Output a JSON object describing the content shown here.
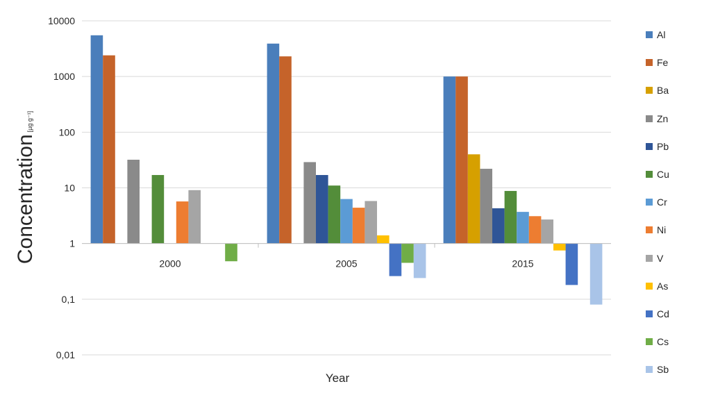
{
  "chart_data": {
    "type": "bar",
    "title": "",
    "xlabel": "Year",
    "ylabel": "Concentration",
    "ylabel_unit": "[µg g⁻¹]",
    "y_scale": "log",
    "ylim": [
      0.01,
      10000
    ],
    "y_ticks": [
      {
        "value": 0.01,
        "label": "0,01"
      },
      {
        "value": 0.1,
        "label": "0,1"
      },
      {
        "value": 1,
        "label": "1"
      },
      {
        "value": 10,
        "label": "10"
      },
      {
        "value": 100,
        "label": "100"
      },
      {
        "value": 1000,
        "label": "1000"
      },
      {
        "value": 10000,
        "label": "10000"
      }
    ],
    "bar_baseline": 1,
    "grid": true,
    "legend_position": "right",
    "categories": [
      "2000",
      "2005",
      "2015"
    ],
    "series": [
      {
        "name": "Al",
        "color": "#4a7ebb",
        "values": [
          5500,
          3900,
          1000
        ]
      },
      {
        "name": "Fe",
        "color": "#c5632a",
        "values": [
          2400,
          2300,
          1000
        ]
      },
      {
        "name": "Ba",
        "color": "#d6a000",
        "values": [
          null,
          null,
          40
        ]
      },
      {
        "name": "Zn",
        "color": "#8a8a8a",
        "values": [
          32,
          29,
          22
        ]
      },
      {
        "name": "Pb",
        "color": "#2f5597",
        "values": [
          null,
          17,
          4.3
        ]
      },
      {
        "name": "Cu",
        "color": "#538d3a",
        "values": [
          17,
          11,
          8.8
        ]
      },
      {
        "name": "Cr",
        "color": "#5b9bd5",
        "values": [
          null,
          6.3,
          3.7
        ]
      },
      {
        "name": "Ni",
        "color": "#ed7d31",
        "values": [
          5.7,
          4.4,
          3.1
        ]
      },
      {
        "name": "V",
        "color": "#a5a5a5",
        "values": [
          9.1,
          5.8,
          2.7
        ]
      },
      {
        "name": "As",
        "color": "#ffc000",
        "values": [
          null,
          1.4,
          0.75
        ]
      },
      {
        "name": "Cd",
        "color": "#4472c4",
        "values": [
          null,
          0.26,
          0.18
        ]
      },
      {
        "name": "Cs",
        "color": "#70ad47",
        "values": [
          0.48,
          0.45,
          null
        ]
      },
      {
        "name": "Sb",
        "color": "#a9c4e8",
        "values": [
          null,
          0.24,
          0.08
        ]
      }
    ]
  }
}
